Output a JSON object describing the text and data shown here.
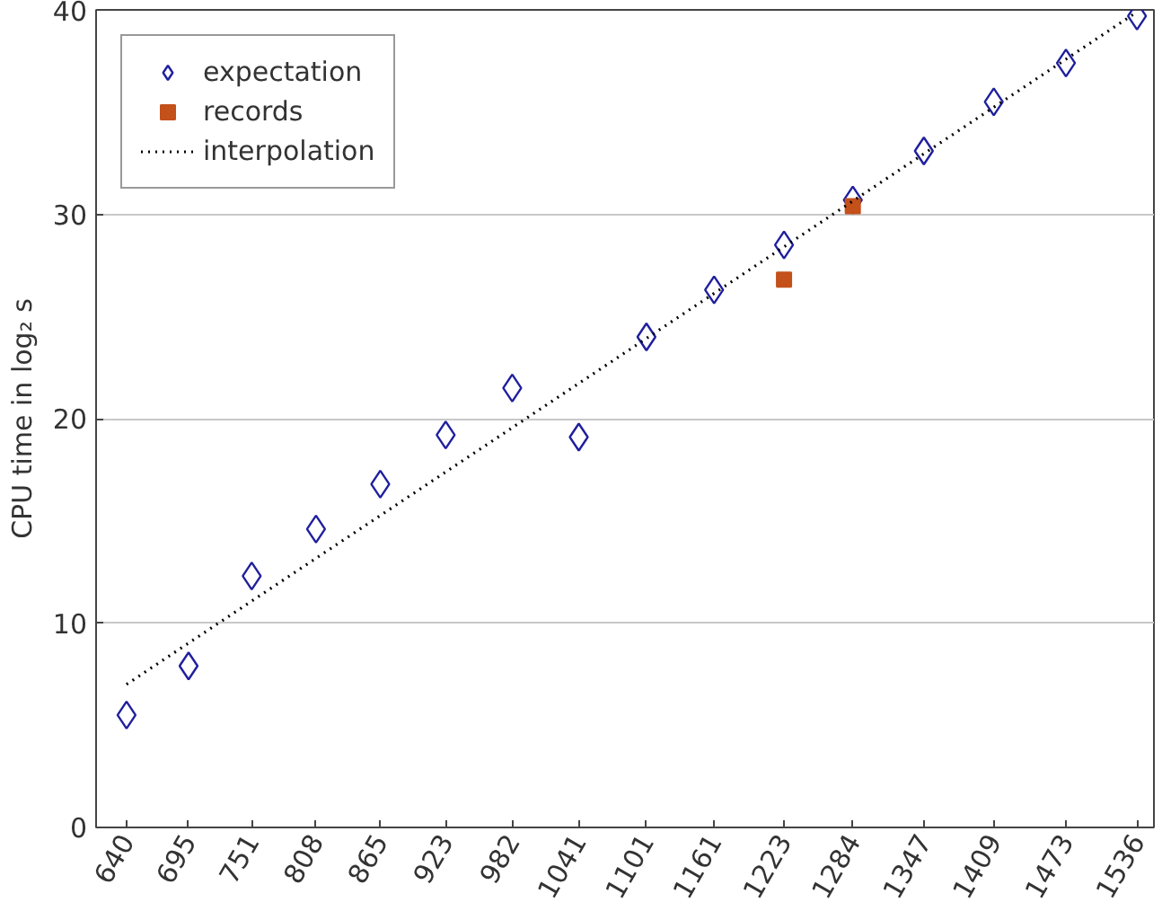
{
  "chart_data": {
    "type": "scatter",
    "ylabel": "CPU time in log₂ s",
    "x": [
      640,
      695,
      751,
      808,
      865,
      923,
      982,
      1041,
      1101,
      1161,
      1223,
      1284,
      1347,
      1409,
      1473,
      1536
    ],
    "xlim": [
      613,
      1551
    ],
    "xticks": [
      640,
      695,
      751,
      808,
      865,
      923,
      982,
      1041,
      1101,
      1161,
      1223,
      1284,
      1347,
      1409,
      1473,
      1536
    ],
    "ylim": [
      0,
      40
    ],
    "yticks": [
      0,
      10,
      20,
      30,
      40
    ],
    "grid": "y",
    "legend": "top left",
    "series": [
      {
        "name": "expectation",
        "marker": "diamond",
        "color": "#1f1f9e",
        "values": [
          5.5,
          7.9,
          12.3,
          14.6,
          16.8,
          19.2,
          21.5,
          19.1,
          24.0,
          26.3,
          28.5,
          30.7,
          33.1,
          35.5,
          37.4,
          39.7
        ]
      },
      {
        "name": "records",
        "marker": "square",
        "color": "#c4501a",
        "x": [
          1223,
          1284
        ],
        "values": [
          26.8,
          30.4
        ]
      },
      {
        "name": "interpolation",
        "type": "line",
        "line_style": "dotted",
        "marker": "none",
        "color": "#000000",
        "x": [
          640,
          1536
        ],
        "values": [
          7.0,
          39.9
        ]
      }
    ]
  }
}
